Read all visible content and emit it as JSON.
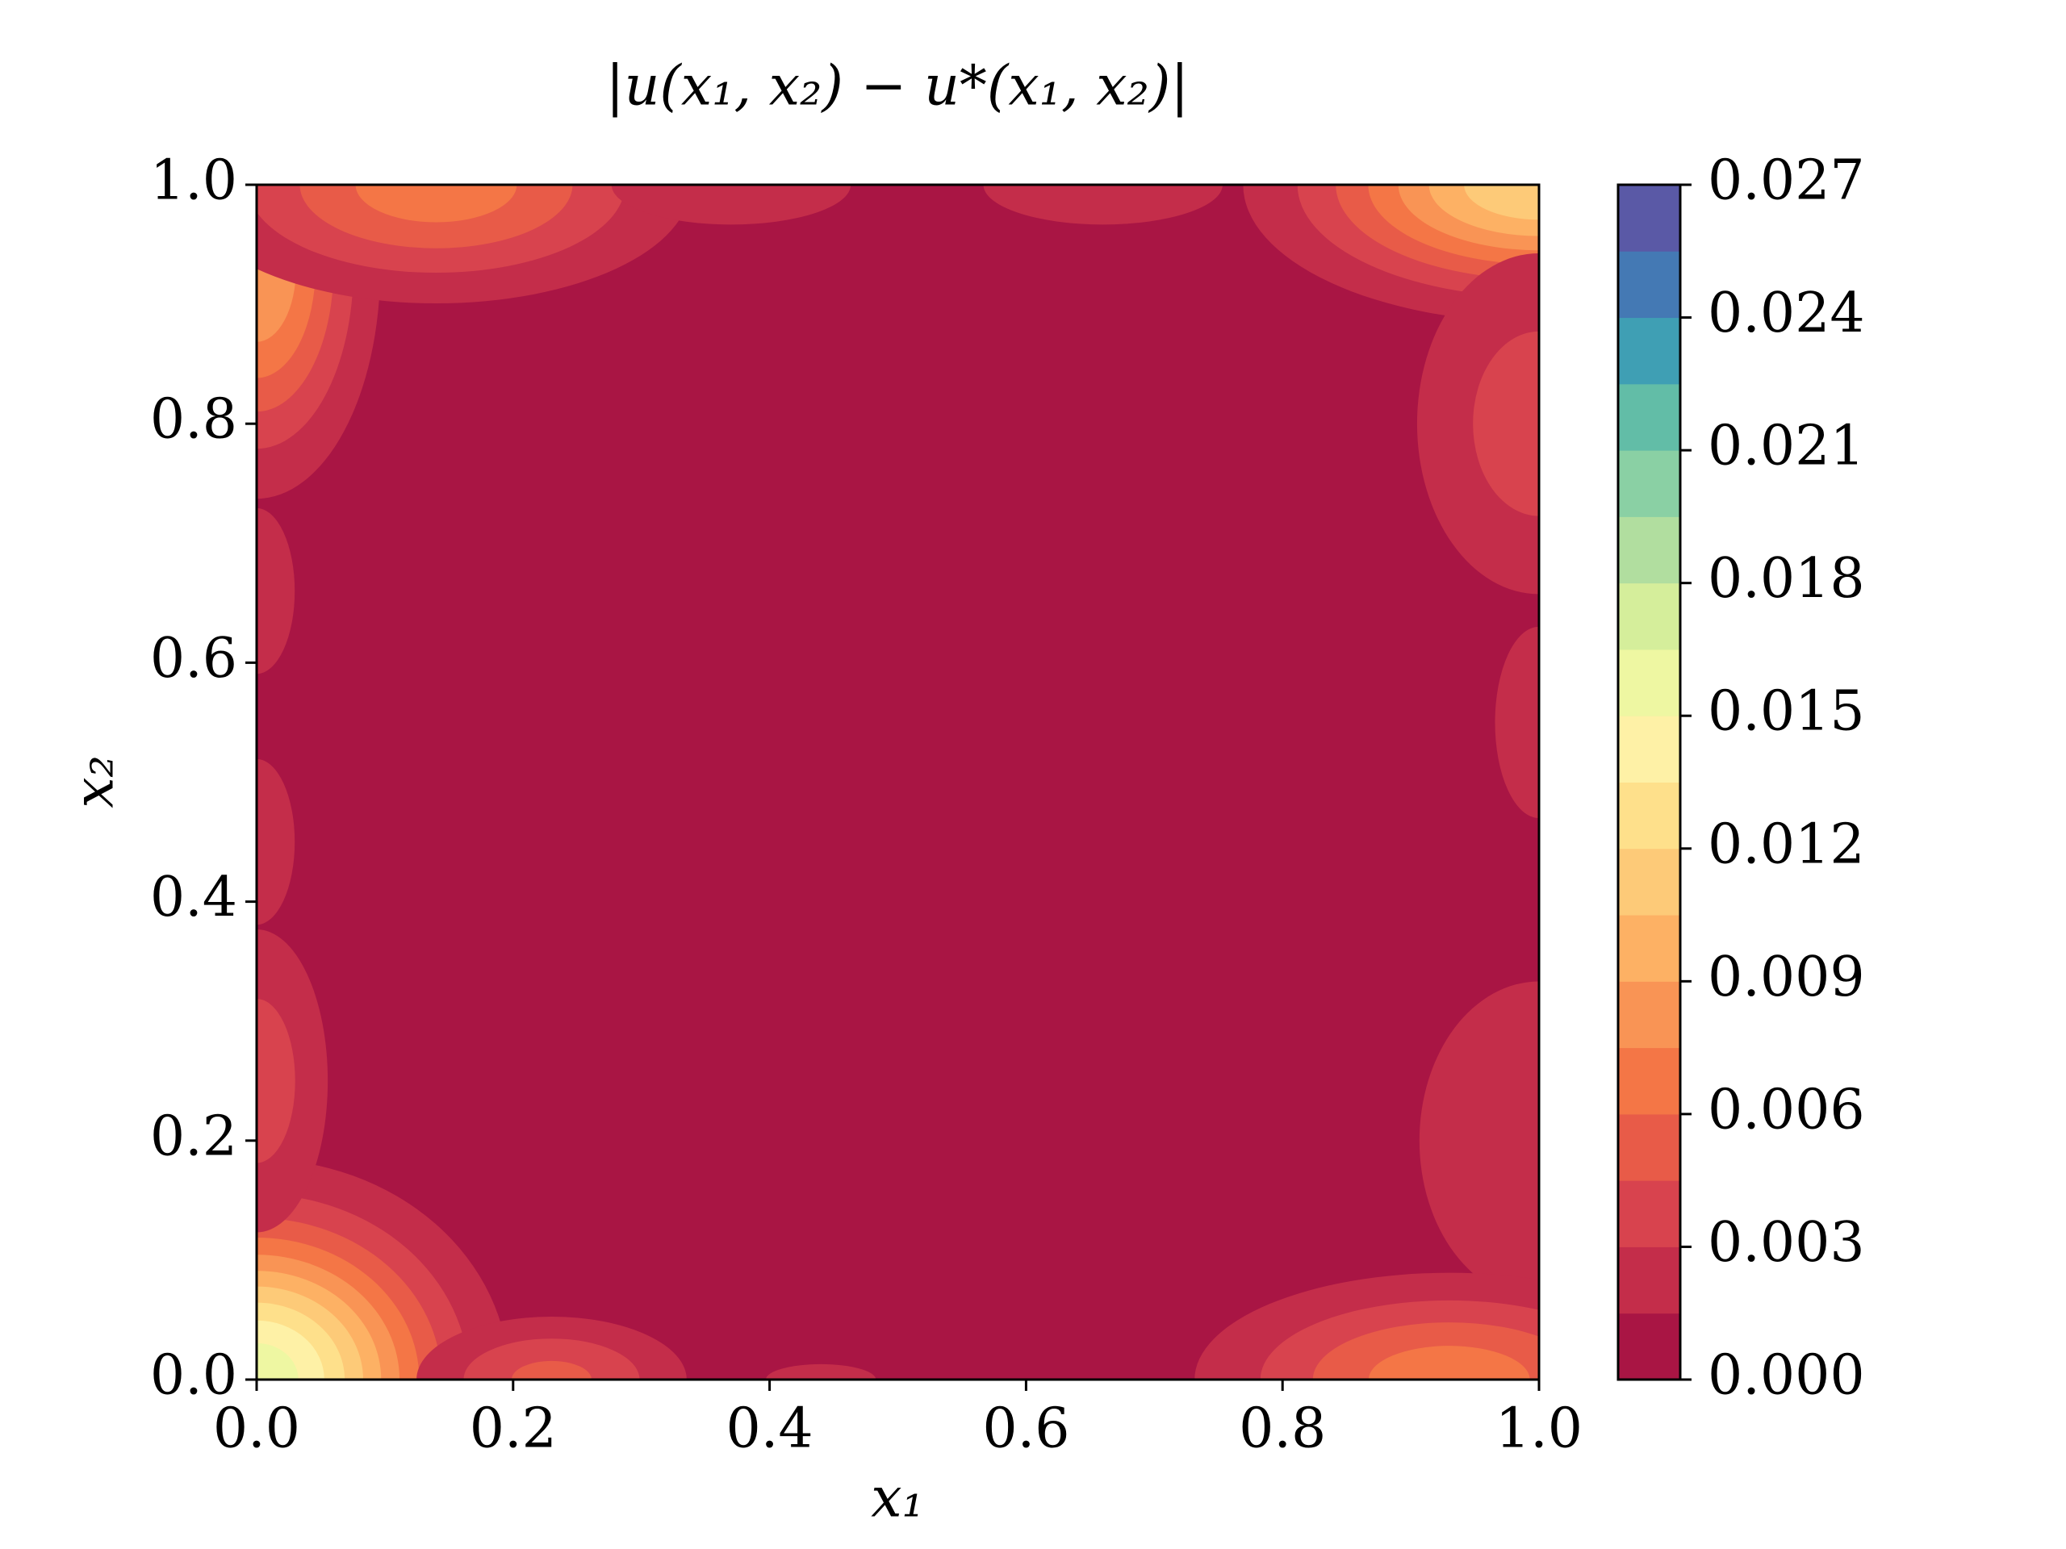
{
  "chart_data": {
    "type": "contour",
    "title": "|u(x₁, x₂) − u*(x₁, x₂)|",
    "xlabel": "x₁",
    "ylabel": "x₂",
    "xlim": [
      0,
      1
    ],
    "ylim": [
      0,
      1
    ],
    "xticks": [
      {
        "value": 0,
        "label": "0.0"
      },
      0.2,
      0.4,
      0.6,
      0.8,
      {
        "value": 1,
        "label": "1.0"
      }
    ],
    "yticks": [
      {
        "value": 0,
        "label": "0.0"
      },
      0.2,
      0.4,
      0.6,
      0.8,
      {
        "value": 1,
        "label": "1.0"
      }
    ],
    "levels": [
      0,
      0.0015,
      0.003,
      0.0045,
      0.006,
      0.0075,
      0.009,
      0.0105,
      0.012,
      0.0135,
      0.015,
      0.0165,
      0.018,
      0.0195,
      0.021,
      0.0225,
      0.024,
      0.0255,
      0.027
    ],
    "colors": [
      "#a91544",
      "#c42d4a",
      "#d8434e",
      "#e85b48",
      "#f47646",
      "#f99455",
      "#fdb164",
      "#fdca78",
      "#fee08b",
      "#fef1a6",
      "#eef7a2",
      "#d5ee9b",
      "#b1de9f",
      "#8ad0a4",
      "#62bda7",
      "#3f9fb4",
      "#4479b4",
      "#5a59a6"
    ],
    "colorbar_ticks": [
      {
        "value": 0,
        "label": "0.000"
      },
      0.003,
      0.006,
      0.009,
      0.012,
      0.015,
      0.018,
      0.021,
      0.024,
      0.027
    ],
    "hotspots": [
      {
        "x": 0,
        "y": 0,
        "peak": 0.016,
        "spread": [
          0.08,
          0.075
        ]
      },
      {
        "x": 1,
        "y": 1,
        "peak": 0.012,
        "spread": [
          0.1,
          0.05
        ]
      },
      {
        "x": 0,
        "y": 0.93,
        "peak": 0.009,
        "spread": [
          0.045,
          0.09
        ]
      },
      {
        "x": 0.14,
        "y": 1,
        "peak": 0.007,
        "spread": [
          0.1,
          0.05
        ]
      },
      {
        "x": 0.37,
        "y": 1,
        "peak": 0.003,
        "spread": [
          0.07,
          0.025
        ]
      },
      {
        "x": 0.66,
        "y": 1,
        "peak": 0.003,
        "spread": [
          0.07,
          0.025
        ]
      },
      {
        "x": 1,
        "y": 0.8,
        "peak": 0.004,
        "spread": [
          0.06,
          0.09
        ]
      },
      {
        "x": 1,
        "y": 0.55,
        "peak": 0.0025,
        "spread": [
          0.03,
          0.07
        ]
      },
      {
        "x": 1,
        "y": 0.2,
        "peak": 0.003,
        "spread": [
          0.07,
          0.1
        ]
      },
      {
        "x": 0.93,
        "y": 0,
        "peak": 0.007,
        "spread": [
          0.1,
          0.045
        ]
      },
      {
        "x": 0.23,
        "y": 0,
        "peak": 0.005,
        "spread": [
          0.06,
          0.03
        ]
      },
      {
        "x": 0.44,
        "y": 0,
        "peak": 0.002,
        "spread": [
          0.05,
          0.015
        ]
      },
      {
        "x": 0,
        "y": 0.25,
        "peak": 0.004,
        "spread": [
          0.035,
          0.08
        ]
      },
      {
        "x": 0,
        "y": 0.45,
        "peak": 0.0022,
        "spread": [
          0.03,
          0.07
        ]
      },
      {
        "x": 0,
        "y": 0.66,
        "peak": 0.0022,
        "spread": [
          0.03,
          0.07
        ]
      }
    ]
  }
}
